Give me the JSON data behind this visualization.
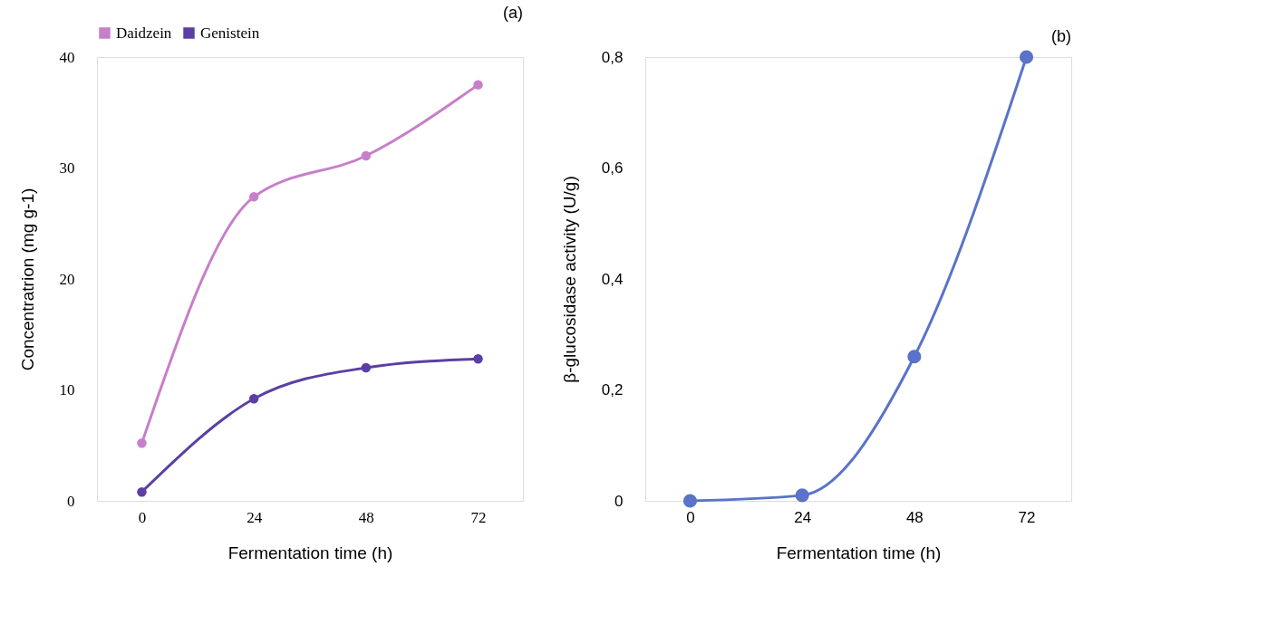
{
  "chart_data": [
    {
      "type": "line",
      "title": "(a)",
      "xlabel": "Fermentation time (h)",
      "ylabel": "Concentratrion (mg g-1)",
      "categories": [
        "0",
        "24",
        "48",
        "72"
      ],
      "ylim": [
        0,
        40
      ],
      "yticks": [
        0,
        10,
        20,
        30,
        40
      ],
      "grid": false,
      "legend": "top",
      "marker": "circle",
      "line_style": "solid",
      "series": [
        {
          "name": "Daidzein",
          "color": "#c77fca",
          "values": [
            5.2,
            27.4,
            31.1,
            37.5
          ]
        },
        {
          "name": "Genistein",
          "color": "#5b3fa3",
          "values": [
            0.8,
            9.2,
            12.0,
            12.8
          ]
        }
      ]
    },
    {
      "type": "line",
      "title": "(b)",
      "xlabel": "Fermentation time (h)",
      "ylabel": "β-glucosidase activity (U/g)",
      "categories": [
        "0",
        "24",
        "48",
        "72"
      ],
      "ylim": [
        0,
        0.8
      ],
      "yticks": [
        0,
        {
          "value": 0.2,
          "label": "0,2"
        },
        {
          "value": 0.4,
          "label": "0,4"
        },
        {
          "value": 0.6,
          "label": "0,6"
        },
        {
          "value": 0.8,
          "label": "0,8"
        }
      ],
      "grid": false,
      "legend": false,
      "marker": "circle",
      "line_style": "solid",
      "series": [
        {
          "color": "#5a73c8",
          "values": [
            0,
            0.01,
            0.26,
            0.8
          ]
        }
      ]
    }
  ]
}
